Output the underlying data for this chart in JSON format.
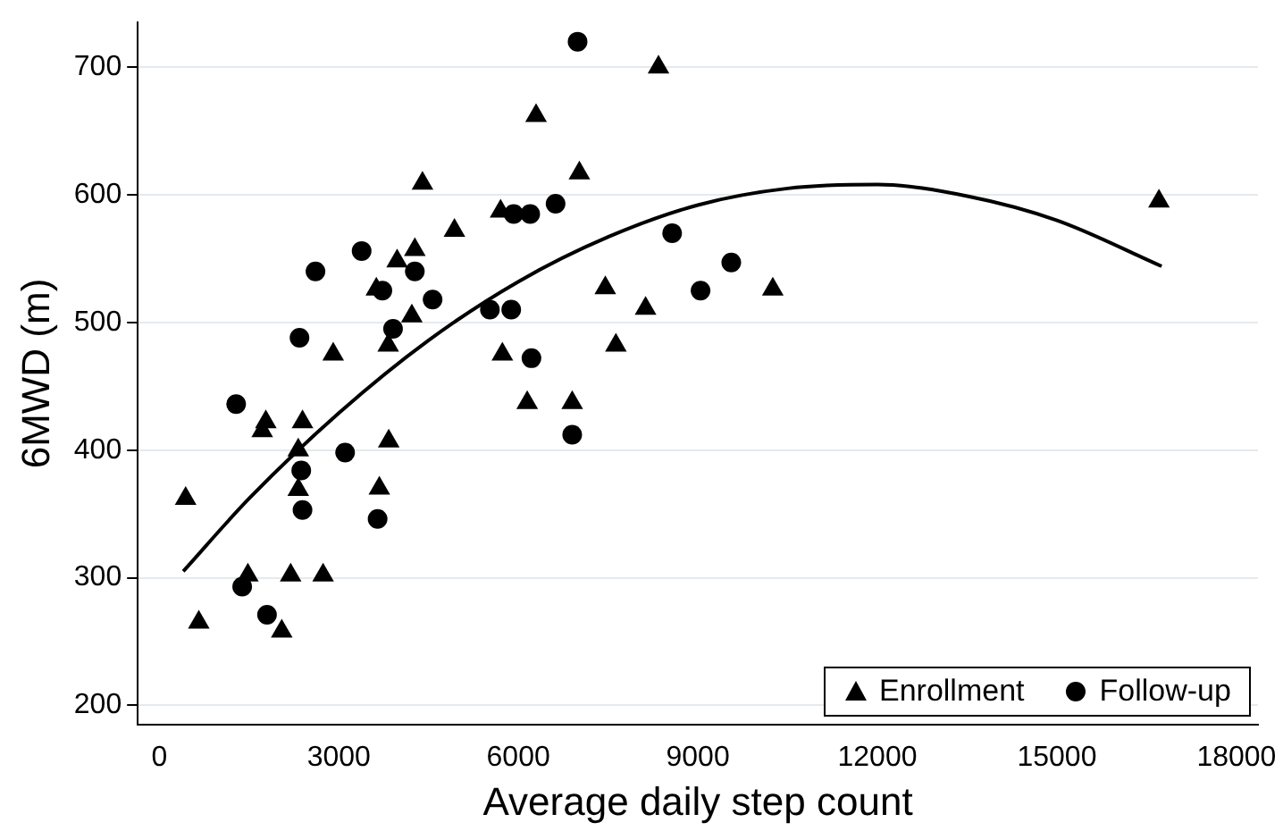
{
  "chart_data": {
    "type": "scatter",
    "xlabel": "Average daily step count",
    "ylabel": "6MWD (m)",
    "xlim": [
      -360,
      18360
    ],
    "xticks": [
      0,
      3000,
      6000,
      9000,
      12000,
      15000,
      18000
    ],
    "ylim": [
      185,
      735
    ],
    "yticks": [
      200,
      300,
      400,
      500,
      600,
      700
    ],
    "grid": "y",
    "legend": "bottom right",
    "series": [
      {
        "name": "Enrollment",
        "color": "#000000",
        "marker": "triangle",
        "x": [
          440,
          660,
          1480,
          1780,
          1720,
          2195,
          2046,
          2393,
          2322,
          2322,
          2737,
          3834,
          3677,
          6148,
          6900,
          2906,
          3825,
          4220,
          3627,
          3974,
          4270,
          4398,
          4932,
          5703,
          6296,
          7020,
          7453,
          7630,
          8126,
          8342,
          5733,
          10252,
          16705
        ],
        "values": [
          362,
          265,
          302,
          422,
          415,
          302,
          258,
          422,
          400,
          369,
          302,
          407,
          370,
          437,
          437,
          475,
          482,
          505,
          526,
          548,
          557,
          609,
          572,
          587,
          662,
          617,
          527,
          482,
          511,
          700,
          475,
          526,
          595
        ]
      },
      {
        "name": "Follow-up",
        "color": "#000000",
        "marker": "circle",
        "x": [
          1284,
          1385,
          1800,
          2372,
          2393,
          3105,
          3648,
          6900,
          2343,
          2610,
          3381,
          4270,
          3728,
          3906,
          4567,
          5525,
          5881,
          6219,
          5922,
          6198,
          6622,
          6990,
          8570,
          9045,
          9558
        ],
        "values": [
          436,
          293,
          271,
          384,
          353,
          398,
          346,
          412,
          488,
          540,
          556,
          540,
          525,
          495,
          518,
          510,
          510,
          472,
          585,
          585,
          593,
          720,
          570,
          525,
          547
        ]
      },
      {
        "type": "line",
        "color": "#000000",
        "marker": "none",
        "line_style": "solid",
        "x": [
          400,
          1500,
          3000,
          4500,
          6000,
          7500,
          9000,
          10500,
          12000,
          13500,
          15000,
          16750
        ],
        "values": [
          305,
          362,
          429,
          486,
          532,
          567,
          592,
          605,
          608,
          599,
          580,
          544
        ]
      }
    ]
  }
}
